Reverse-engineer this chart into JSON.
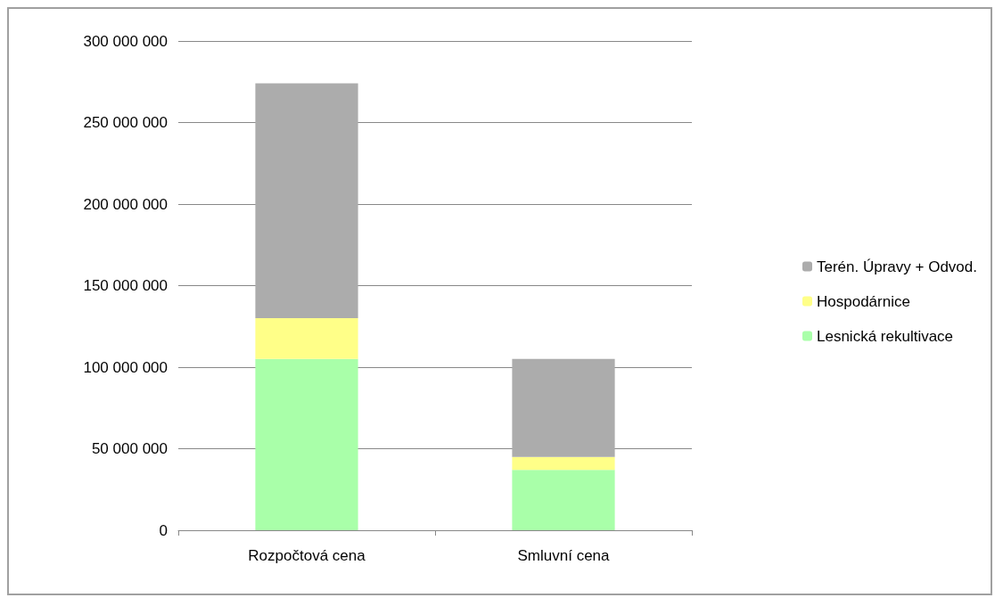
{
  "chart_data": {
    "type": "bar",
    "stacked": true,
    "categories": [
      "Rozpočtová cena",
      "Smluvní cena"
    ],
    "series": [
      {
        "name": "Lesnická rekultivace",
        "color": "#a9ffa9",
        "values": [
          105000000,
          37000000
        ]
      },
      {
        "name": "Hospodárnice",
        "color": "#ffff88",
        "values": [
          25000000,
          8000000
        ]
      },
      {
        "name": "Terén. Úpravy + Odvod.",
        "color": "#acacac",
        "values": [
          144000000,
          60000000
        ]
      }
    ],
    "ylim": [
      0,
      300000000
    ],
    "yticks": [
      0,
      50000000,
      100000000,
      150000000,
      200000000,
      250000000,
      300000000
    ],
    "grid": "y",
    "legend": "right"
  }
}
